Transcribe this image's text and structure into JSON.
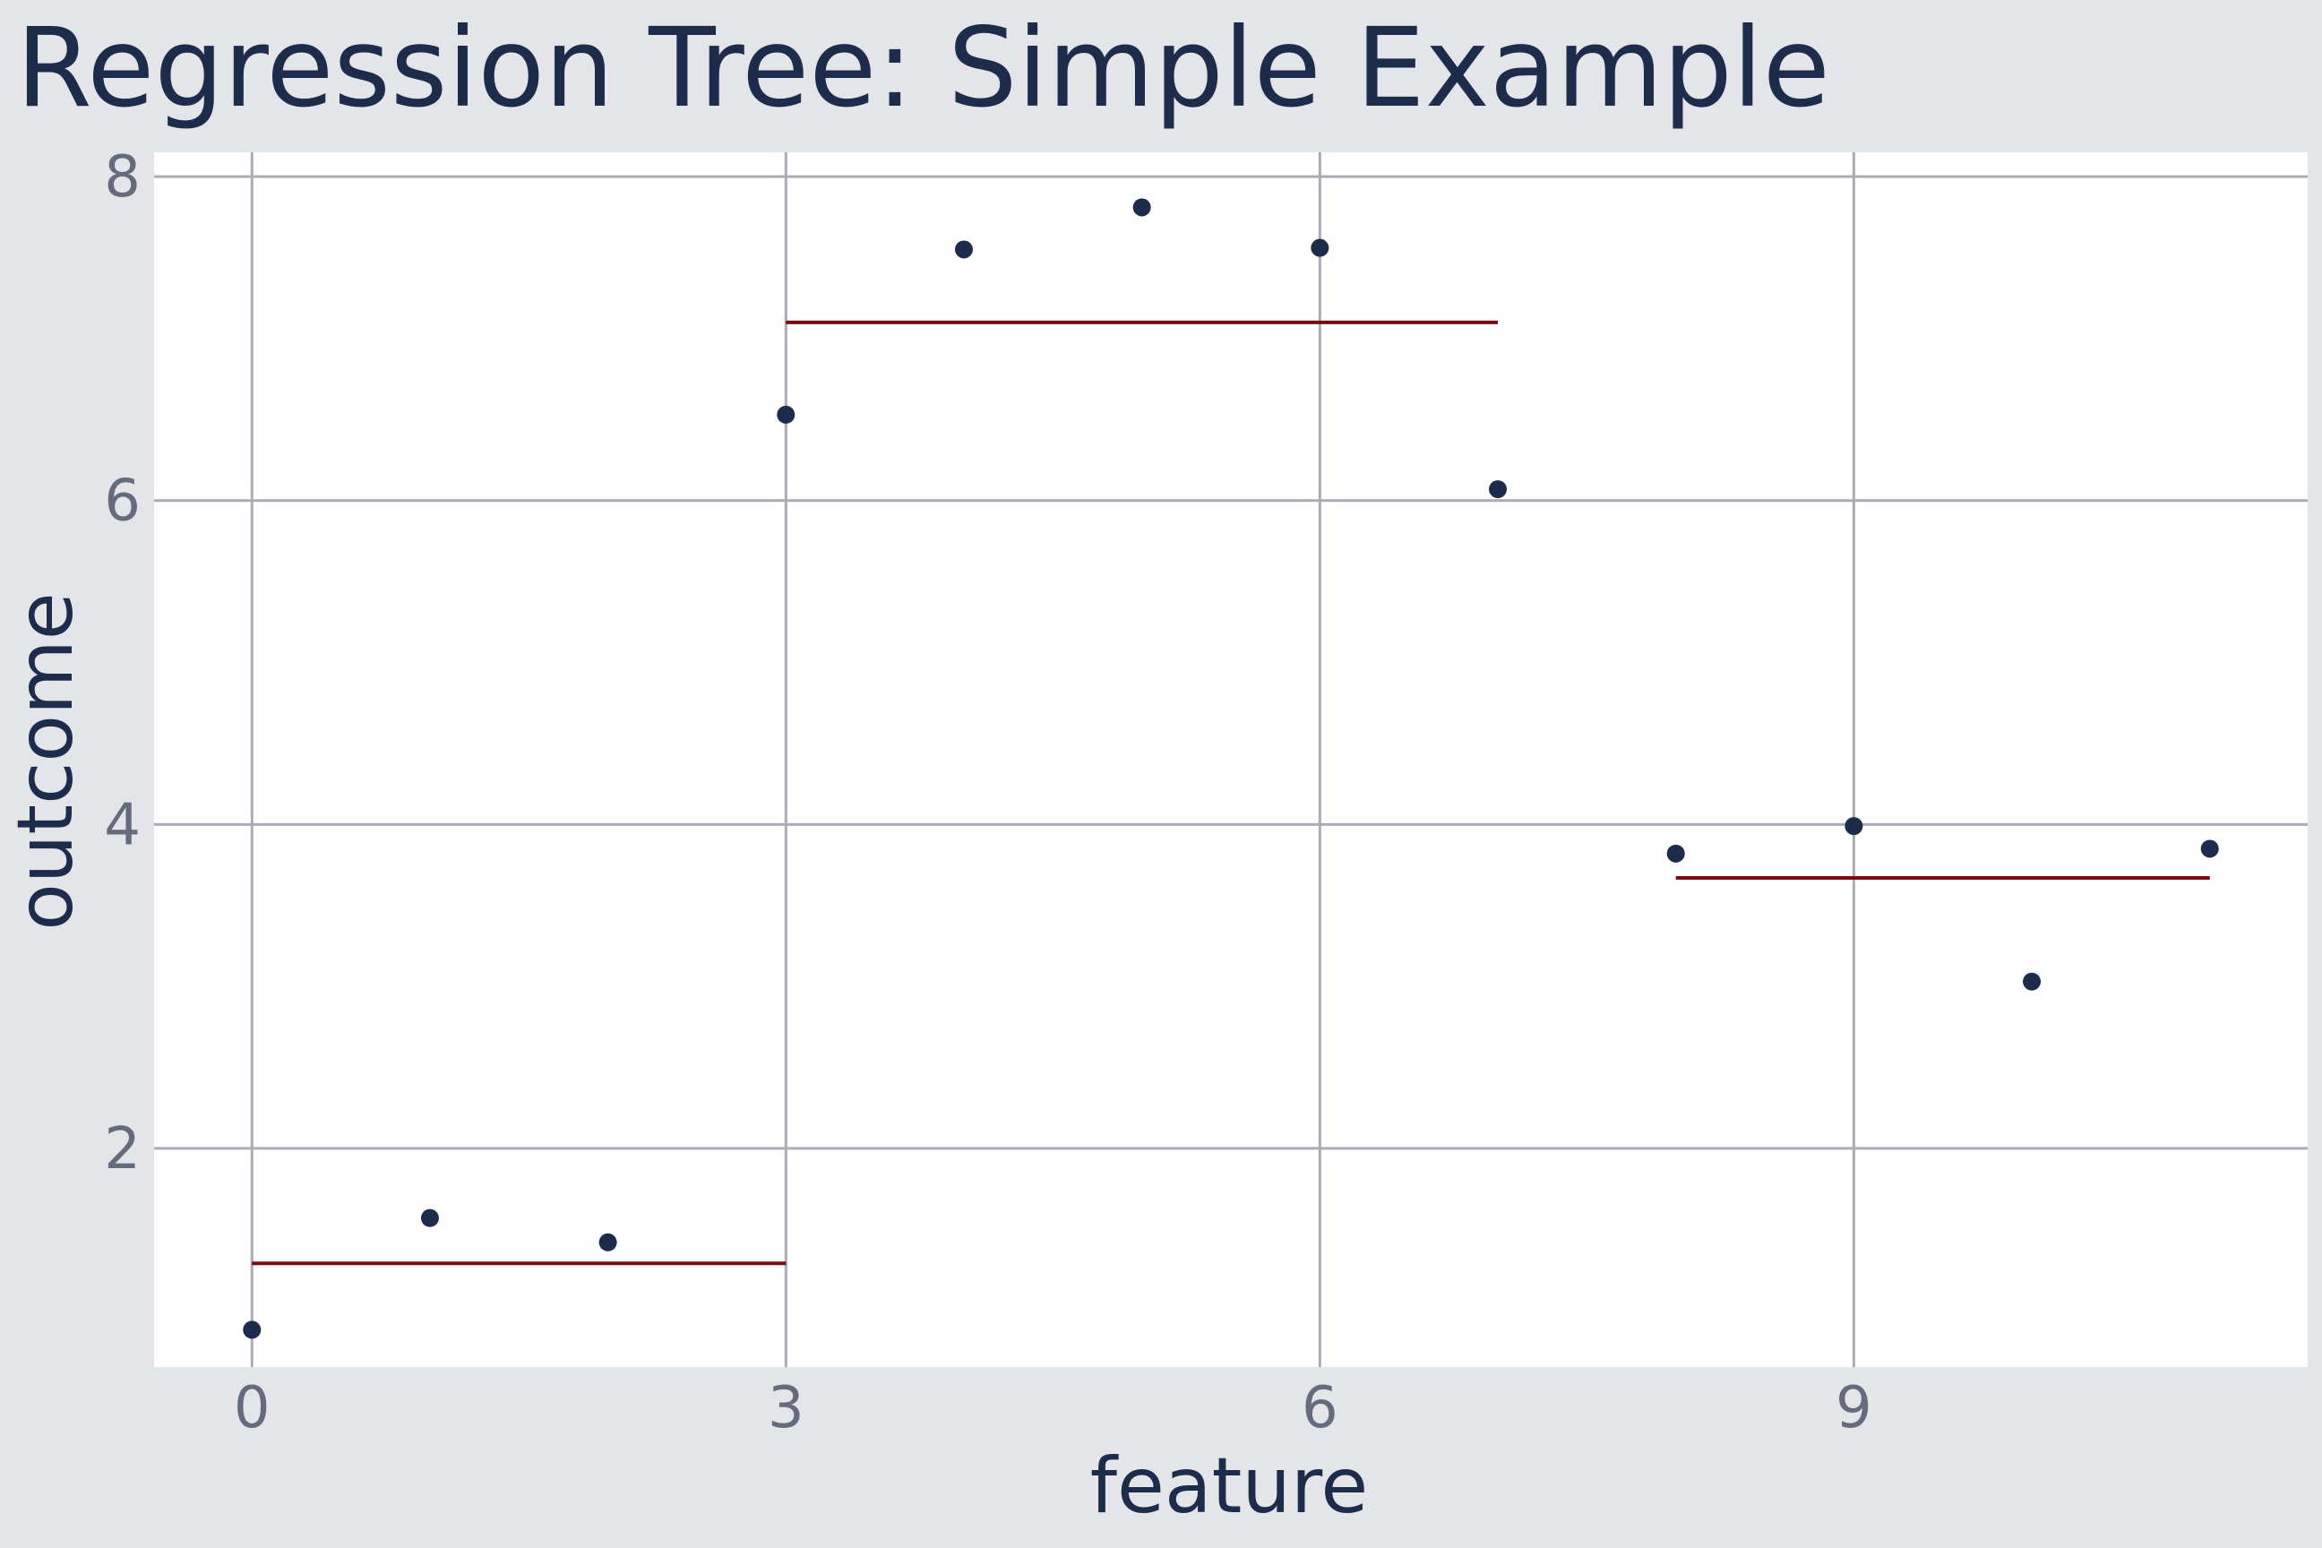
{
  "colors": {
    "background": "#e4e5e9",
    "panel": "#ffffff",
    "grid": "#a9acb4",
    "point": "#1e2c4c",
    "fit_line": "#7b0a12",
    "title": "#1e2c4c",
    "tick_label": "#646b7c"
  },
  "chart_data": {
    "type": "scatter",
    "title": "Regression Tree: Simple Example",
    "xlabel": "feature",
    "ylabel": "outcome",
    "xlim": [
      -0.55,
      11.55
    ],
    "ylim": [
      0.65,
      8.15
    ],
    "x_ticks": [
      0,
      3,
      6,
      9
    ],
    "y_ticks": [
      2,
      4,
      6,
      8
    ],
    "grid": true,
    "legend": "none",
    "series": [
      {
        "type": "scatter",
        "x": [
          0,
          1,
          2,
          3,
          4,
          5,
          6,
          7,
          8,
          9,
          10,
          11
        ],
        "y": [
          0.88,
          1.57,
          1.42,
          6.53,
          7.55,
          7.81,
          7.56,
          6.07,
          3.82,
          3.99,
          3.03,
          3.85
        ]
      },
      {
        "type": "step",
        "segments": [
          {
            "x0": 0,
            "x1": 3,
            "y": 1.29
          },
          {
            "x0": 3,
            "x1": 7,
            "y": 7.1
          },
          {
            "x0": 8,
            "x1": 11,
            "y": 3.67
          }
        ]
      }
    ]
  }
}
